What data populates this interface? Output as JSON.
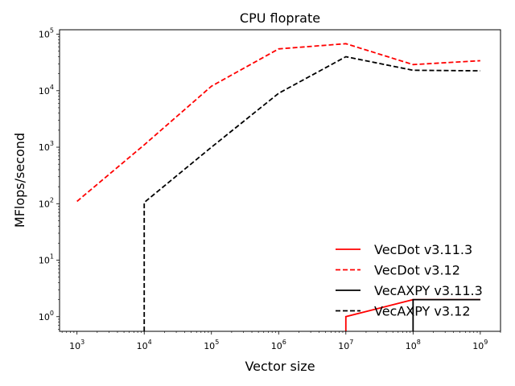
{
  "chart_data": {
    "type": "line",
    "title": "CPU floprate",
    "xlabel": "Vector size",
    "ylabel": "MFlops/second",
    "xscale": "log",
    "yscale": "log",
    "xlim": [
      550,
      2000000000
    ],
    "ylim": [
      0.55,
      120000
    ],
    "xticks": [
      {
        "value": 1000,
        "base": "10",
        "exp": "3"
      },
      {
        "value": 10000,
        "base": "10",
        "exp": "4"
      },
      {
        "value": 100000,
        "base": "10",
        "exp": "5"
      },
      {
        "value": 1000000,
        "base": "10",
        "exp": "6"
      },
      {
        "value": 10000000,
        "base": "10",
        "exp": "7"
      },
      {
        "value": 100000000,
        "base": "10",
        "exp": "8"
      },
      {
        "value": 1000000000,
        "base": "10",
        "exp": "9"
      }
    ],
    "yticks": [
      {
        "value": 1,
        "base": "10",
        "exp": "0"
      },
      {
        "value": 10,
        "base": "10",
        "exp": "1"
      },
      {
        "value": 100,
        "base": "10",
        "exp": "2"
      },
      {
        "value": 1000,
        "base": "10",
        "exp": "3"
      },
      {
        "value": 10000,
        "base": "10",
        "exp": "4"
      },
      {
        "value": 100000,
        "base": "10",
        "exp": "5"
      }
    ],
    "grid": false,
    "legend_position": "lower-right",
    "series": [
      {
        "name": "VecDot v3.11.3",
        "color": "#ff0000",
        "dash": "solid",
        "x": [
          10000000,
          10000000,
          100000000,
          1000000000
        ],
        "y": [
          0.55,
          1,
          2,
          2
        ]
      },
      {
        "name": "VecDot v3.12",
        "color": "#ff0000",
        "dash": "dashed",
        "x": [
          1000,
          10000,
          100000,
          1000000,
          10000000,
          100000000,
          1000000000
        ],
        "y": [
          110,
          1100,
          12000,
          55000,
          68000,
          29000,
          34000
        ]
      },
      {
        "name": "VecAXPY v3.11.3",
        "color": "#000000",
        "dash": "solid",
        "x": [
          100000000,
          100000000,
          1000000000
        ],
        "y": [
          0.55,
          2,
          2
        ]
      },
      {
        "name": "VecAXPY v3.12",
        "color": "#000000",
        "dash": "dashed",
        "x": [
          10000,
          10000,
          100000,
          1000000,
          10000000,
          100000000,
          1000000000
        ],
        "y": [
          0.55,
          105,
          1000,
          9000,
          40000,
          23000,
          22500
        ]
      }
    ]
  }
}
